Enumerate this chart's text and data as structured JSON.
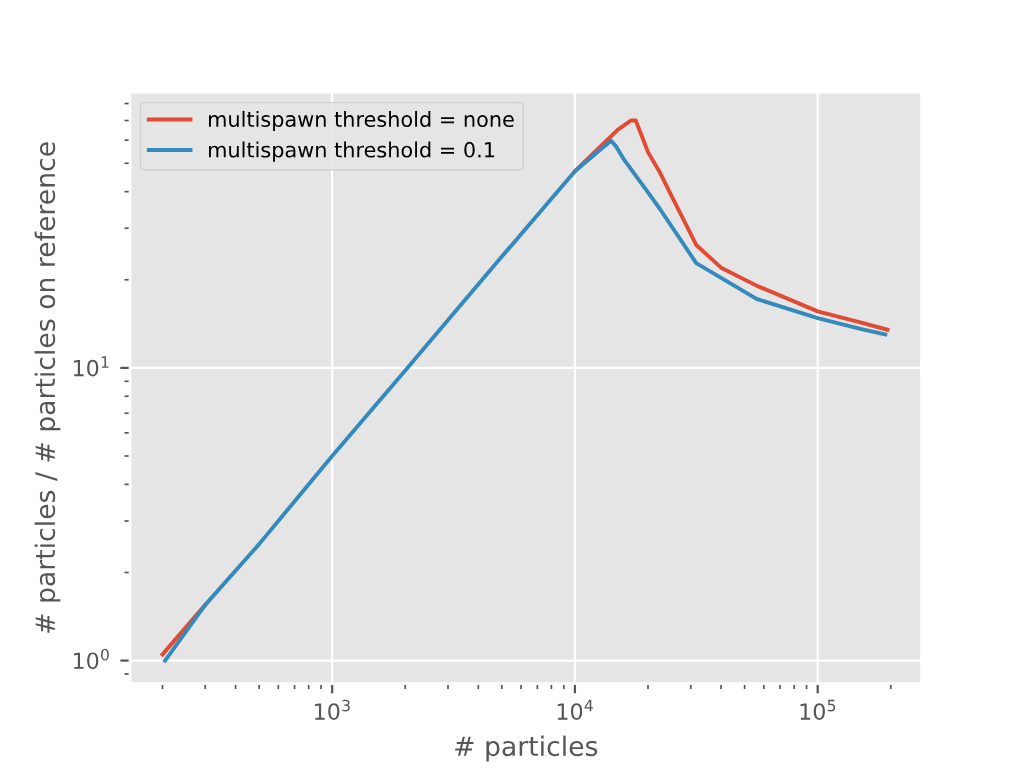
{
  "chart_data": {
    "type": "line",
    "xlabel": "# particles",
    "ylabel": "# particles / # particles on reference",
    "log": "xy",
    "grid": true,
    "legend": "top left",
    "line_style": "solid",
    "marker": "none",
    "xlim": [
      147,
      268000
    ],
    "ylim": [
      0.835,
      87.5
    ],
    "xticks": [
      {
        "value": 1000,
        "label": "10$^{3}$"
      },
      {
        "value": 10000,
        "label": "10$^{4}$"
      },
      {
        "value": 100000,
        "label": "10$^{5}$"
      }
    ],
    "yticks": [
      {
        "value": 1,
        "label": "10$^{0}$"
      },
      {
        "value": 10,
        "label": "10$^{1}$"
      }
    ],
    "series": [
      {
        "name": "multispawn threshold = none",
        "color": "#e24a33",
        "x": [
          200,
          300,
          500,
          1000,
          2000,
          5000,
          10000,
          13000,
          15000,
          17000,
          17800,
          18600,
          20000,
          22400,
          25000,
          31600,
          40000,
          56000,
          100000,
          150000,
          194000
        ],
        "values": [
          1.05,
          1.55,
          null,
          null,
          null,
          null,
          47,
          58,
          65,
          70,
          70,
          63.8,
          54.6,
          46.5,
          38.7,
          26.3,
          22,
          19.1,
          15.6,
          14.3,
          13.5
        ]
      },
      {
        "name": "multispawn threshold = 0.1",
        "color": "#348abd",
        "x": [
          205,
          300,
          500,
          1000,
          2000,
          5000,
          10000,
          12500,
          14100,
          14800,
          15850,
          20000,
          22400,
          31600,
          56000,
          100000,
          150000,
          190000
        ],
        "values": [
          1.0,
          1.55,
          2.5,
          5.0,
          9.8,
          24,
          47,
          55,
          59.7,
          57,
          51.8,
          39.8,
          34.9,
          22.8,
          17.2,
          14.8,
          13.6,
          13.0
        ]
      }
    ]
  }
}
